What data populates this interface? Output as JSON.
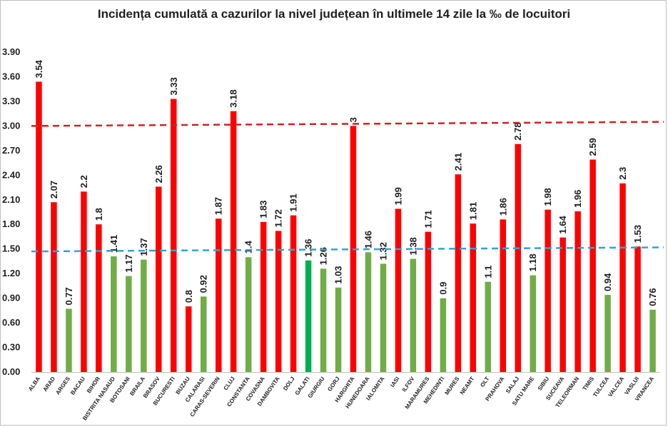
{
  "chart_data": {
    "type": "bar",
    "title": "Incidența cumulată a cazurilor la nivel județean în ultimele 14 zile la ‰ de locuitori",
    "xlabel": "",
    "ylabel": "",
    "ylim": [
      0,
      3.9
    ],
    "yticks": [
      "0.00",
      "0.30",
      "0.60",
      "0.90",
      "1.20",
      "1.50",
      "1.80",
      "2.10",
      "2.40",
      "2.70",
      "3.00",
      "3.30",
      "3.60",
      "3.90"
    ],
    "categories": [
      "ALBA",
      "ARAD",
      "ARGES",
      "BACAU",
      "BIHOR",
      "BISTRITA NASAUD",
      "BOTOSANI",
      "BRAILA",
      "BRASOV",
      "BUCURESTI",
      "BUZAU",
      "CALARASI",
      "CARAS-SEVERIN",
      "CLUJ",
      "CONSTANTA",
      "COVASNA",
      "DAMBOVITA",
      "DOLJ",
      "GALATI",
      "GIURGIU",
      "GORJ",
      "HARGHITA",
      "HUNEDOARA",
      "IALOMITA",
      "IASI",
      "ILFOV",
      "MARAMURES",
      "MEHEDINTI",
      "MURES",
      "NEAMT",
      "OLT",
      "PRAHOVA",
      "SALAJ",
      "SATU MARE",
      "SIBIU",
      "SUCEAVA",
      "TELEORMAN",
      "TIMIS",
      "TULCEA",
      "VALCEA",
      "VASLUI",
      "VRANCEA"
    ],
    "values": [
      3.54,
      2.07,
      0.77,
      2.2,
      1.8,
      1.41,
      1.17,
      1.37,
      2.26,
      3.33,
      0.8,
      0.92,
      1.87,
      3.18,
      1.4,
      1.83,
      1.72,
      1.91,
      1.36,
      1.26,
      1.03,
      3,
      1.46,
      1.32,
      1.99,
      1.38,
      1.71,
      0.9,
      2.41,
      1.81,
      1.1,
      1.86,
      2.78,
      1.18,
      1.98,
      1.64,
      1.96,
      2.59,
      0.94,
      2.3,
      1.53,
      0.76
    ],
    "data_labels": [
      "3.54",
      "2.07",
      "0.77",
      "2.2",
      "1.8",
      "1.41",
      "1.17",
      "1.37",
      "2.26",
      "3.33",
      "0.8",
      "0.92",
      "1.87",
      "3.18",
      "1.4",
      "1.83",
      "1.72",
      "1.91",
      "1.36",
      "1.26",
      "1.03",
      "3",
      "1.46",
      "1.32",
      "1.99",
      "1.38",
      "1.71",
      "0.9",
      "2.41",
      "1.81",
      "1.1",
      "1.86",
      "2.78",
      "1.18",
      "1.98",
      "1.64",
      "1.96",
      "2.59",
      "0.94",
      "2.3",
      "1.53",
      "0.76"
    ],
    "bar_colors": [
      "red",
      "red",
      "green",
      "red",
      "red",
      "green",
      "green",
      "green",
      "red",
      "red",
      "red",
      "green",
      "red",
      "red",
      "green",
      "red",
      "red",
      "red",
      "dark-green",
      "green",
      "green",
      "red",
      "green",
      "green",
      "red",
      "green",
      "red",
      "green",
      "red",
      "red",
      "green",
      "red",
      "red",
      "green",
      "red",
      "red",
      "red",
      "red",
      "green",
      "red",
      "red",
      "green"
    ],
    "reference_lines": [
      {
        "style": "dashed",
        "color": "#d62020",
        "y_start": 3.0,
        "y_end": 3.05
      },
      {
        "style": "dashed",
        "color": "#2aa6d6",
        "y_start": 1.47,
        "y_end": 1.52
      }
    ],
    "colors": {
      "red": "#ff0000",
      "green": "#70ad47",
      "dark-green": "#00b050"
    },
    "grid": false,
    "legend": "none"
  }
}
